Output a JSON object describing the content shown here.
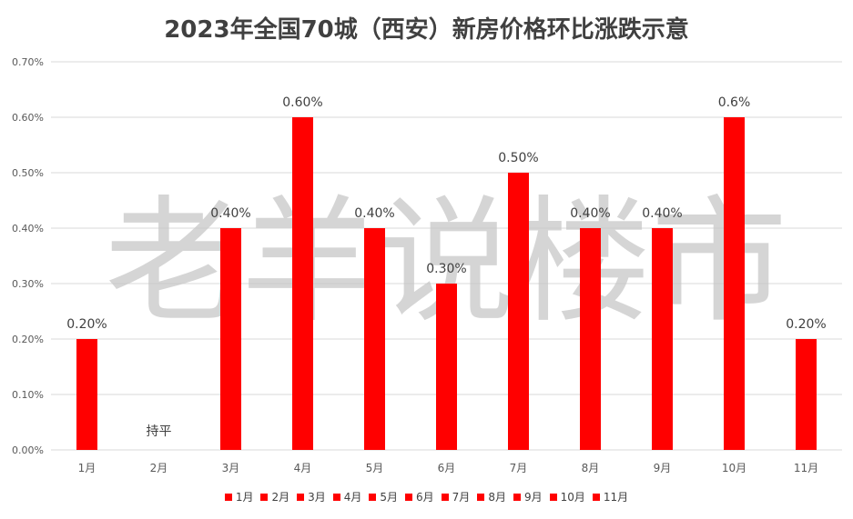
{
  "chart_data": {
    "type": "bar",
    "title": "2023年全国70城（西安）新房价格环比涨跌示意",
    "categories": [
      "1月",
      "2月",
      "3月",
      "4月",
      "5月",
      "6月",
      "7月",
      "8月",
      "9月",
      "10月",
      "11月"
    ],
    "series": [
      {
        "values": [
          0.2,
          0.0,
          0.4,
          0.6,
          0.4,
          0.3,
          0.5,
          0.4,
          0.4,
          0.6,
          0.2
        ]
      }
    ],
    "data_labels": [
      "0.20%",
      "持平",
      "0.40%",
      "0.60%",
      "0.40%",
      "0.30%",
      "0.50%",
      "0.40%",
      "0.40%",
      "0.6%",
      "0.20%"
    ],
    "y_ticks": [
      "0.00%",
      "0.10%",
      "0.20%",
      "0.30%",
      "0.40%",
      "0.50%",
      "0.60%",
      "0.70%"
    ],
    "ylim": [
      0,
      0.7
    ],
    "grid": true,
    "legend_position": "bottom",
    "bar_color": "#ff0000",
    "watermark": "老羊说楼市"
  }
}
